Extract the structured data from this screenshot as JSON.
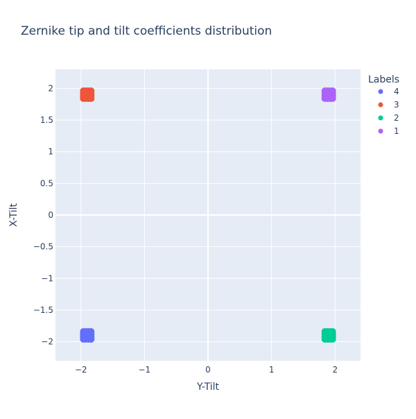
{
  "chart_data": {
    "type": "scatter",
    "title": "Zernike tip and tilt coefficients distribution",
    "xlabel": "Y-Tilt",
    "ylabel": "X-Tilt",
    "xlim": [
      -2.4,
      2.4
    ],
    "ylim": [
      -2.3,
      2.3
    ],
    "x_ticks": [
      -2,
      -1,
      0,
      1,
      2
    ],
    "x_tick_labels": [
      "−2",
      "−1",
      "0",
      "1",
      "2"
    ],
    "y_ticks": [
      -2,
      -1.5,
      -1,
      -0.5,
      0,
      0.5,
      1,
      1.5,
      2
    ],
    "y_tick_labels": [
      "−2",
      "−1.5",
      "−1",
      "−0.5",
      "0",
      "0.5",
      "1",
      "1.5",
      "2"
    ],
    "grid": true,
    "legend": {
      "title": "Labels",
      "placement": "right"
    },
    "series": [
      {
        "name": "4",
        "color": "#636efa",
        "points": [
          [
            -1.96,
            -1.84
          ],
          [
            -1.92,
            -1.84
          ],
          [
            -1.88,
            -1.84
          ],
          [
            -1.84,
            -1.84
          ],
          [
            -1.96,
            -1.88
          ],
          [
            -1.92,
            -1.88
          ],
          [
            -1.88,
            -1.88
          ],
          [
            -1.84,
            -1.88
          ],
          [
            -1.96,
            -1.92
          ],
          [
            -1.92,
            -1.92
          ],
          [
            -1.88,
            -1.92
          ],
          [
            -1.84,
            -1.92
          ],
          [
            -1.96,
            -1.96
          ],
          [
            -1.92,
            -1.96
          ],
          [
            -1.88,
            -1.96
          ],
          [
            -1.84,
            -1.96
          ]
        ]
      },
      {
        "name": "3",
        "color": "#ef553b",
        "points": [
          [
            -1.96,
            1.96
          ],
          [
            -1.92,
            1.96
          ],
          [
            -1.88,
            1.96
          ],
          [
            -1.84,
            1.96
          ],
          [
            -1.96,
            1.92
          ],
          [
            -1.92,
            1.92
          ],
          [
            -1.88,
            1.92
          ],
          [
            -1.84,
            1.92
          ],
          [
            -1.96,
            1.88
          ],
          [
            -1.92,
            1.88
          ],
          [
            -1.88,
            1.88
          ],
          [
            -1.84,
            1.88
          ],
          [
            -1.96,
            1.84
          ],
          [
            -1.92,
            1.84
          ],
          [
            -1.88,
            1.84
          ],
          [
            -1.84,
            1.84
          ]
        ]
      },
      {
        "name": "2",
        "color": "#00cc96",
        "points": [
          [
            1.84,
            -1.84
          ],
          [
            1.88,
            -1.84
          ],
          [
            1.92,
            -1.84
          ],
          [
            1.96,
            -1.84
          ],
          [
            1.84,
            -1.88
          ],
          [
            1.88,
            -1.88
          ],
          [
            1.92,
            -1.88
          ],
          [
            1.96,
            -1.88
          ],
          [
            1.84,
            -1.92
          ],
          [
            1.88,
            -1.92
          ],
          [
            1.92,
            -1.92
          ],
          [
            1.96,
            -1.92
          ],
          [
            1.84,
            -1.96
          ],
          [
            1.88,
            -1.96
          ],
          [
            1.92,
            -1.96
          ],
          [
            1.96,
            -1.96
          ]
        ]
      },
      {
        "name": "1",
        "color": "#ab63fa",
        "points": [
          [
            1.84,
            1.96
          ],
          [
            1.88,
            1.96
          ],
          [
            1.92,
            1.96
          ],
          [
            1.96,
            1.96
          ],
          [
            1.84,
            1.92
          ],
          [
            1.88,
            1.92
          ],
          [
            1.92,
            1.92
          ],
          [
            1.96,
            1.92
          ],
          [
            1.84,
            1.88
          ],
          [
            1.88,
            1.88
          ],
          [
            1.92,
            1.88
          ],
          [
            1.96,
            1.88
          ],
          [
            1.84,
            1.84
          ],
          [
            1.88,
            1.84
          ],
          [
            1.92,
            1.84
          ],
          [
            1.96,
            1.84
          ]
        ]
      }
    ],
    "colors": {
      "plot_background": "#e5ecf6",
      "grid": "#ffffff",
      "text": "#2a3f5f"
    }
  }
}
